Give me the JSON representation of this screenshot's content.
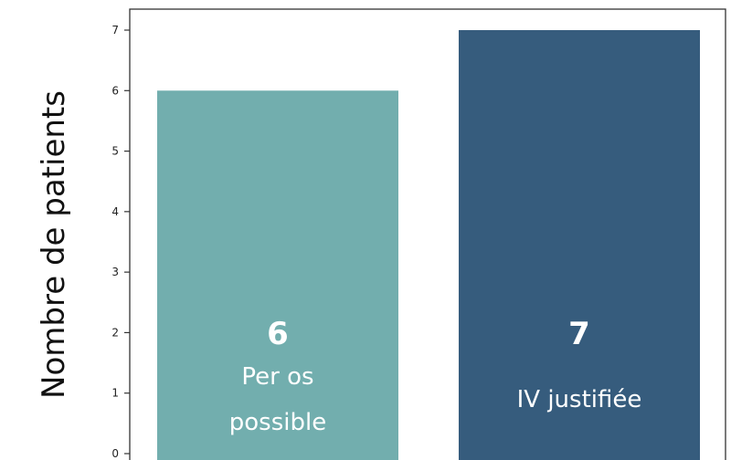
{
  "chart_data": {
    "type": "bar",
    "categories": [
      "Per os possible",
      "IV justifiée"
    ],
    "values": [
      6,
      7
    ],
    "bar_labels": [
      [
        "Per os",
        "possible"
      ],
      [
        "IV justifiée"
      ]
    ],
    "colors": [
      "#72aeae",
      "#365c7d"
    ],
    "title": "",
    "xlabel": "",
    "ylabel": "Nombre de patients",
    "ylim": [
      0,
      7
    ],
    "yticks": [
      "0",
      "1",
      "2",
      "3",
      "4",
      "5",
      "6",
      "7"
    ],
    "grid": false,
    "legend": "none"
  }
}
